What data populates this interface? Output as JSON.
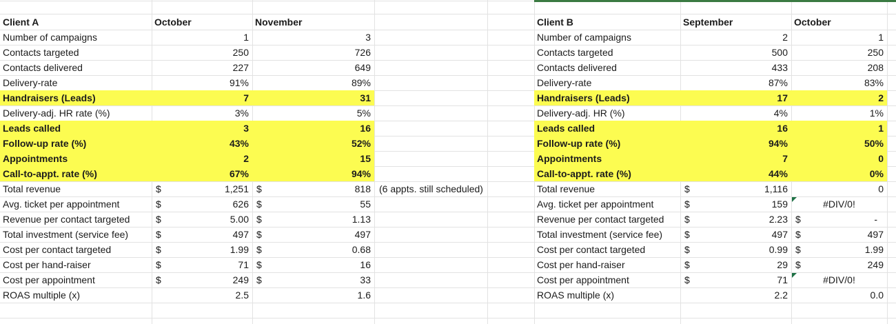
{
  "sheet": {
    "currency_symbol": "$",
    "colors": {
      "background": "#FFFFFF",
      "text": "#1B1B1B",
      "gridline": "#E2E2E2",
      "highlight": "#FCFC51",
      "table_top_border": "#3A7A42",
      "error_flag": "#1E7145"
    },
    "tables": [
      {
        "name": "Client A",
        "period_headers": [
          "October",
          "November"
        ],
        "rows": [
          {
            "label": "Number of campaigns",
            "cells": [
              {
                "text": "1"
              },
              {
                "text": "3"
              }
            ]
          },
          {
            "label": "Contacts targeted",
            "cells": [
              {
                "text": "250"
              },
              {
                "text": "726"
              }
            ]
          },
          {
            "label": "Contacts delivered",
            "cells": [
              {
                "text": "227"
              },
              {
                "text": "649"
              }
            ]
          },
          {
            "label": "Delivery-rate",
            "cells": [
              {
                "text": "91%"
              },
              {
                "text": "89%"
              }
            ]
          },
          {
            "label": "Handraisers (Leads)",
            "highlight": true,
            "cells": [
              {
                "text": "7"
              },
              {
                "text": "31"
              }
            ]
          },
          {
            "label": "Delivery-adj. HR rate (%)",
            "cells": [
              {
                "text": "3%"
              },
              {
                "text": "5%"
              }
            ]
          },
          {
            "label": "Leads called",
            "highlight": true,
            "cells": [
              {
                "text": "3"
              },
              {
                "text": "16"
              }
            ]
          },
          {
            "label": "Follow-up rate (%)",
            "highlight": true,
            "cells": [
              {
                "text": "43%"
              },
              {
                "text": "52%"
              }
            ]
          },
          {
            "label": "Appointments",
            "highlight": true,
            "cells": [
              {
                "text": "2"
              },
              {
                "text": "15"
              }
            ]
          },
          {
            "label": "Call-to-appt. rate (%)",
            "highlight": true,
            "cells": [
              {
                "text": "67%"
              },
              {
                "text": "94%"
              }
            ]
          },
          {
            "label": "Total revenue",
            "cells": [
              {
                "text": "1,251",
                "currency": true
              },
              {
                "text": "818",
                "currency": true
              }
            ],
            "note": "(6 appts. still scheduled)"
          },
          {
            "label": "Avg. ticket per appointment",
            "cells": [
              {
                "text": "626",
                "currency": true
              },
              {
                "text": "55",
                "currency": true
              }
            ]
          },
          {
            "label": "Revenue per contact targeted",
            "cells": [
              {
                "text": "5.00",
                "currency": true
              },
              {
                "text": "1.13",
                "currency": true
              }
            ]
          },
          {
            "label": "Total investment (service fee)",
            "cells": [
              {
                "text": "497",
                "currency": true
              },
              {
                "text": "497",
                "currency": true
              }
            ]
          },
          {
            "label": "Cost per contact targeted",
            "cells": [
              {
                "text": "1.99",
                "currency": true
              },
              {
                "text": "0.68",
                "currency": true
              }
            ]
          },
          {
            "label": "Cost per hand-raiser",
            "cells": [
              {
                "text": "71",
                "currency": true
              },
              {
                "text": "16",
                "currency": true
              }
            ]
          },
          {
            "label": "Cost per appointment",
            "cells": [
              {
                "text": "249",
                "currency": true
              },
              {
                "text": "33",
                "currency": true
              }
            ]
          },
          {
            "label": "ROAS multiple (x)",
            "cells": [
              {
                "text": "2.5"
              },
              {
                "text": "1.6"
              }
            ]
          }
        ]
      },
      {
        "name": "Client B",
        "period_headers": [
          "September",
          "October"
        ],
        "rows": [
          {
            "label": "Number of campaigns",
            "cells": [
              {
                "text": "2"
              },
              {
                "text": "1"
              }
            ]
          },
          {
            "label": "Contacts targeted",
            "cells": [
              {
                "text": "500"
              },
              {
                "text": "250"
              }
            ]
          },
          {
            "label": "Contacts delivered",
            "cells": [
              {
                "text": "433"
              },
              {
                "text": "208"
              }
            ]
          },
          {
            "label": "Delivery-rate",
            "cells": [
              {
                "text": "87%"
              },
              {
                "text": "83%"
              }
            ]
          },
          {
            "label": "Handraisers (Leads)",
            "highlight": true,
            "cells": [
              {
                "text": "17"
              },
              {
                "text": "2"
              }
            ]
          },
          {
            "label": "Delivery-adj. HR (%)",
            "cells": [
              {
                "text": "4%"
              },
              {
                "text": "1%"
              }
            ]
          },
          {
            "label": "Leads called",
            "highlight": true,
            "cells": [
              {
                "text": "16"
              },
              {
                "text": "1"
              }
            ]
          },
          {
            "label": "Follow-up rate (%)",
            "highlight": true,
            "cells": [
              {
                "text": "94%"
              },
              {
                "text": "50%"
              }
            ]
          },
          {
            "label": "Appointments",
            "highlight": true,
            "cells": [
              {
                "text": "7"
              },
              {
                "text": "0"
              }
            ]
          },
          {
            "label": "Call-to-appt. rate (%)",
            "highlight": true,
            "cells": [
              {
                "text": "44%"
              },
              {
                "text": "0%"
              }
            ]
          },
          {
            "label": "Total revenue",
            "cells": [
              {
                "text": "1,116",
                "currency": true
              },
              {
                "text": "0"
              }
            ]
          },
          {
            "label": "Avg. ticket per appointment",
            "cells": [
              {
                "text": "159",
                "currency": true
              },
              {
                "text": "#DIV/0!",
                "error": true,
                "flag": true
              }
            ]
          },
          {
            "label": "Revenue per contact targeted",
            "cells": [
              {
                "text": "2.23",
                "currency": true
              },
              {
                "text": "-",
                "currency": true
              }
            ]
          },
          {
            "label": "Total investment (service fee)",
            "cells": [
              {
                "text": "497",
                "currency": true
              },
              {
                "text": "497",
                "currency": true
              }
            ]
          },
          {
            "label": "Cost per contact targeted",
            "cells": [
              {
                "text": "0.99",
                "currency": true
              },
              {
                "text": "1.99",
                "currency": true
              }
            ]
          },
          {
            "label": "Cost per hand-raiser",
            "cells": [
              {
                "text": "29",
                "currency": true
              },
              {
                "text": "249",
                "currency": true
              }
            ]
          },
          {
            "label": "Cost per appointment",
            "cells": [
              {
                "text": "71",
                "currency": true
              },
              {
                "text": "#DIV/0!",
                "error": true,
                "flag": true
              }
            ]
          },
          {
            "label": "ROAS multiple (x)",
            "cells": [
              {
                "text": "2.2"
              },
              {
                "text": "0.0"
              }
            ]
          }
        ]
      }
    ]
  }
}
